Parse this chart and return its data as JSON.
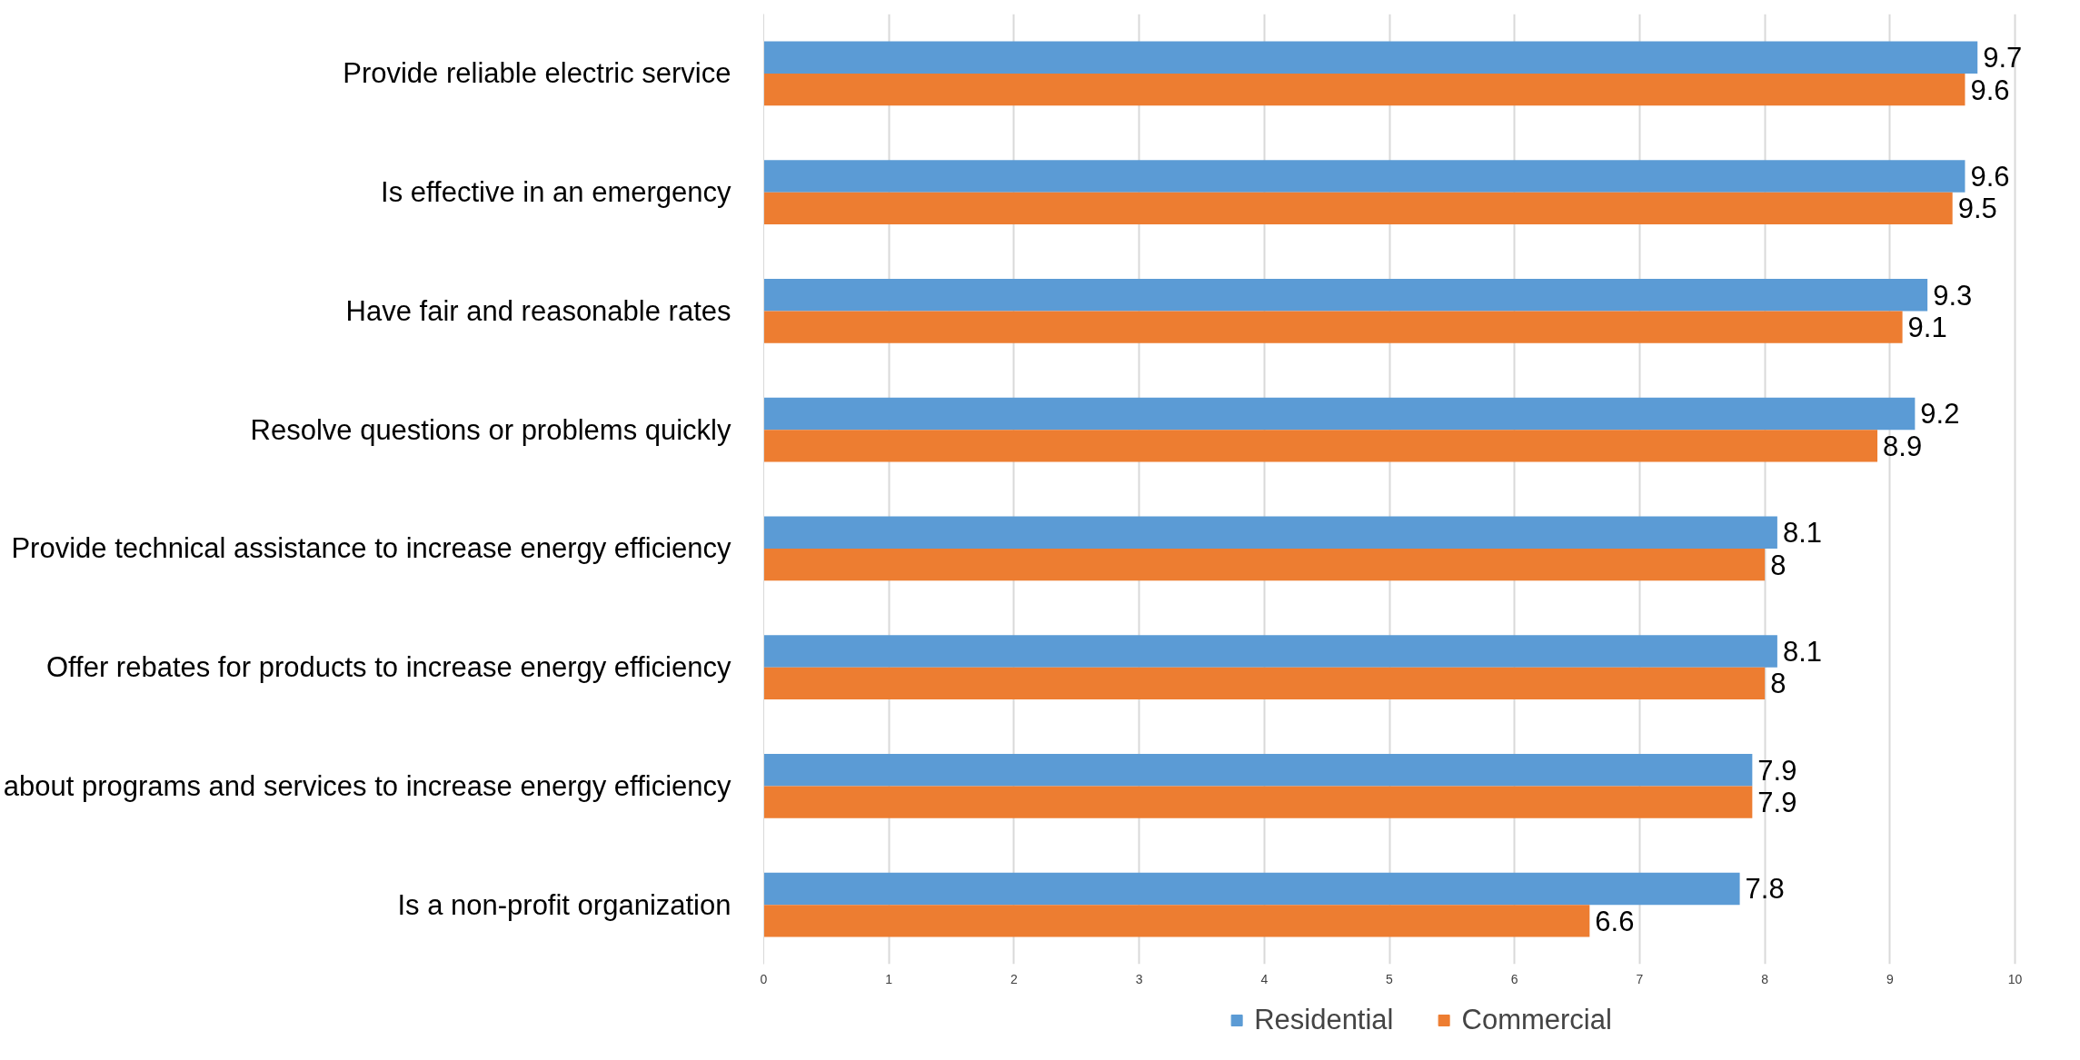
{
  "chart_data": {
    "type": "bar",
    "orientation": "horizontal",
    "categories": [
      "Provide reliable electric service",
      "Is effective in an emergency",
      "Have fair and reasonable rates",
      "Resolve questions or problems quickly",
      "Provide technical assistance to increase energy efficiency",
      "Offer rebates for products to increase energy efficiency",
      "about programs and services to increase energy efficiency",
      "Is a non-profit organization"
    ],
    "series": [
      {
        "name": "Residential",
        "color": "#5b9bd5",
        "values": [
          9.7,
          9.6,
          9.3,
          9.2,
          8.1,
          8.1,
          7.9,
          7.8
        ]
      },
      {
        "name": "Commercial",
        "color": "#ed7d31",
        "values": [
          9.6,
          9.5,
          9.1,
          8.9,
          8,
          8,
          7.9,
          6.6
        ]
      }
    ],
    "xlim": [
      0,
      10
    ],
    "xticks": [
      0,
      1,
      2,
      3,
      4,
      5,
      6,
      7,
      8,
      9,
      10
    ],
    "grid": "x",
    "legend": "bottom",
    "data_labels": true
  }
}
